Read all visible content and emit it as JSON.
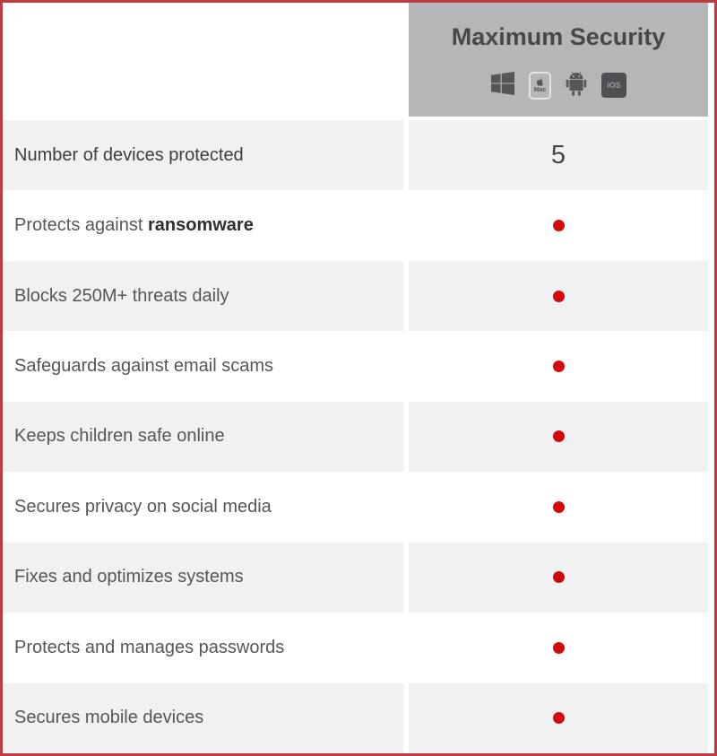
{
  "header": {
    "product_name": "Maximum Security",
    "platforms": [
      "Windows",
      "Mac",
      "Android",
      "iOS"
    ],
    "mac_label": "Mac",
    "ios_label": "iOS"
  },
  "features": [
    {
      "label": "Number of devices protected",
      "label_bold": "",
      "value": "5",
      "included": null
    },
    {
      "label": "Protects against ",
      "label_bold": "ransomware",
      "value": null,
      "included": true
    },
    {
      "label": "Blocks 250M+ threats daily",
      "label_bold": "",
      "value": null,
      "included": true
    },
    {
      "label": "Safeguards against email scams",
      "label_bold": "",
      "value": null,
      "included": true
    },
    {
      "label": "Keeps children safe online",
      "label_bold": "",
      "value": null,
      "included": true
    },
    {
      "label": "Secures privacy on social media",
      "label_bold": "",
      "value": null,
      "included": true
    },
    {
      "label": "Fixes and optimizes systems",
      "label_bold": "",
      "value": null,
      "included": true
    },
    {
      "label": "Protects and manages passwords",
      "label_bold": "",
      "value": null,
      "included": true
    },
    {
      "label": "Secures mobile devices",
      "label_bold": "",
      "value": null,
      "included": true
    }
  ],
  "colors": {
    "border_red": "#bf3b44",
    "dot_red": "#d20a0a",
    "header_bg": "#b5b6b8",
    "row_shade_bg": "#f1f1f2",
    "header_text": "#47484c",
    "row_text": "#55565a",
    "first_row_text": "#3d3e42"
  }
}
